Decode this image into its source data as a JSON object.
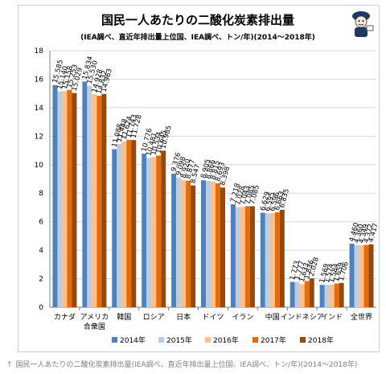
{
  "chart_data": {
    "type": "bar",
    "title": "国民一人あたりの二酸化炭素排出量",
    "subtitle": "(IEA調べ、直近年排出量上位国、IEA調べ、トン/年)(2014～2018年)",
    "categories": [
      "カナダ",
      "アメリカ合衆国",
      "韓国",
      "ロシア",
      "日本",
      "ドイツ",
      "イラン",
      "中国",
      "インドネシア",
      "インド",
      "全世界"
    ],
    "category_lines": [
      [
        "カナダ"
      ],
      [
        "アメリカ",
        "合衆国"
      ],
      [
        "韓国"
      ],
      [
        "ロシア"
      ],
      [
        "日本"
      ],
      [
        "ドイツ"
      ],
      [
        "イラン"
      ],
      [
        "中国"
      ],
      [
        "インドネシア"
      ],
      [
        "インド"
      ],
      [
        "全世界"
      ]
    ],
    "series": [
      {
        "name": "2014年",
        "color": "#4f81bd",
        "values": [
          15.585,
          15.834,
          11.088,
          10.776,
          9.376,
          8.905,
          7.218,
          6.629,
          1.773,
          1.569,
          4.46
        ]
      },
      {
        "name": "2015年",
        "color": "#b9cde5",
        "values": [
          15.14,
          15.53,
          11.448,
          10.481,
          9.098,
          8.866,
          7.028,
          6.595,
          1.777,
          1.574,
          4.36
        ]
      },
      {
        "name": "2016年",
        "color": "#fac090",
        "values": [
          15.158,
          14.928,
          11.624,
          10.534,
          8.92,
          8.815,
          7.043,
          6.596,
          1.633,
          1.584,
          4.349
        ]
      },
      {
        "name": "2017年",
        "color": "#e46c0a",
        "values": [
          15.253,
          14.832,
          11.743,
          10.645,
          8.877,
          8.693,
          7.085,
          6.663,
          1.836,
          1.659,
          4.372
        ]
      },
      {
        "name": "2018年",
        "color": "#984807",
        "values": [
          15.029,
          14.963,
          11.728,
          10.985,
          8.547,
          8.398,
          7.085,
          6.835,
          2.028,
          1.706,
          4.417
        ]
      }
    ],
    "value_labels": [
      [
        "15.585",
        "15.140",
        "15.158",
        "15.253",
        "15.029"
      ],
      [
        "15.834",
        "15.530",
        "14.928",
        "14.832",
        "14.963"
      ],
      [
        "11.088",
        "11.448",
        "11.624",
        "11.743",
        "11.728"
      ],
      [
        "10.776",
        "10.481",
        "10.534",
        "10.645",
        "10.985"
      ],
      [
        "9.376",
        "9.098",
        "8.920",
        "8.877",
        "8.547"
      ],
      [
        "8.905",
        "8.866",
        "8.815",
        "8.693",
        "8.398"
      ],
      [
        "7.218",
        "7.028",
        "7.043",
        "7.085",
        "7.085"
      ],
      [
        "6.629",
        "6.595",
        "6.596",
        "6.663",
        "6.835"
      ],
      [
        "1.773",
        "1.777",
        "1.633",
        "1.836",
        "2.028"
      ],
      [
        "1.569",
        "1.574",
        "1.584",
        "1.659",
        "1.706"
      ],
      [
        "4.460",
        "4.360",
        "4.349",
        "4.372",
        "4.417"
      ]
    ],
    "ylim": [
      0,
      18
    ],
    "yticks": [
      0,
      2,
      4,
      6,
      8,
      10,
      12,
      14,
      16,
      18
    ],
    "xlabel": "",
    "ylabel": "",
    "grid": true,
    "legend_position": "bottom"
  },
  "caption": "国民一人あたりの二酸化炭素排出量(IEA調べ、直近年排出量上位国、IEA調べ、トン/年)(2014～2018年)",
  "caption_arrow": "↑",
  "mascot_icon": "mascot-character-icon"
}
